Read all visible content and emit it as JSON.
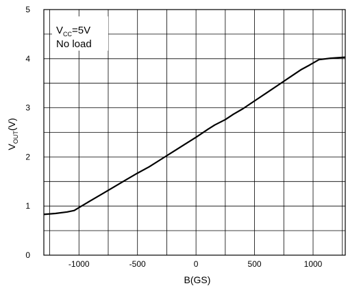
{
  "chart_data": {
    "type": "line",
    "title": "",
    "xlabel": "B(GS)",
    "ylabel": {
      "main": "V",
      "sub": "OUT",
      "suffix": "(V)"
    },
    "xlim": [
      -1300,
      1275
    ],
    "ylim": [
      0,
      5
    ],
    "grid": true,
    "x_ticks": [
      -1000,
      -500,
      0,
      500,
      1000
    ],
    "x_tick_labels": [
      "-1000",
      "-500",
      "0",
      "500",
      "1000"
    ],
    "y_ticks": [
      0,
      1,
      2,
      3,
      4,
      5
    ],
    "y_tick_labels": [
      "0",
      "1",
      "2",
      "3",
      "4",
      "5"
    ],
    "annotation": {
      "line1_main": "V",
      "line1_sub": "CC",
      "line1_suffix": "=5V",
      "line2": "No load"
    },
    "series": [
      {
        "x": [
          -1300,
          -1200,
          -1100,
          -1040,
          -1000,
          -900,
          -800,
          -700,
          -600,
          -500,
          -400,
          -300,
          -200,
          -100,
          0,
          100,
          160,
          250,
          320,
          400,
          500,
          600,
          700,
          800,
          900,
          970,
          1050,
          1150,
          1275
        ],
        "y": [
          0.83,
          0.85,
          0.88,
          0.91,
          0.97,
          1.11,
          1.25,
          1.39,
          1.53,
          1.67,
          1.8,
          1.95,
          2.1,
          2.25,
          2.4,
          2.56,
          2.65,
          2.76,
          2.87,
          2.98,
          3.14,
          3.3,
          3.46,
          3.62,
          3.78,
          3.87,
          3.98,
          4.01,
          4.03
        ]
      }
    ]
  }
}
